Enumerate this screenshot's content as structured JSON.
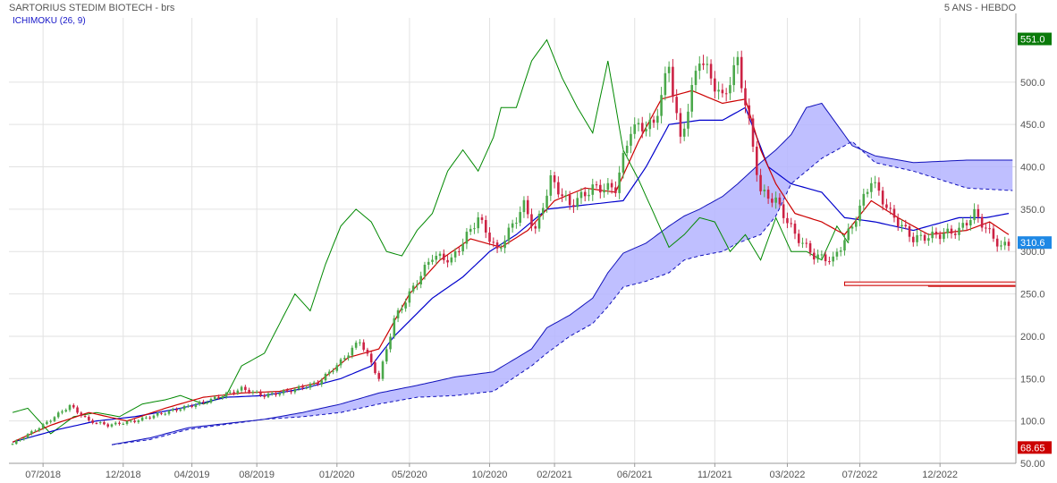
{
  "header": {
    "title": "SARTORIUS STEDIM BIOTECH - brs",
    "period": "5 ANS - HEBDO",
    "indicator": "ICHIMOKU (26, 9)"
  },
  "chart_data": {
    "type": "candlestick",
    "title": "SARTORIUS STEDIM BIOTECH - brs",
    "indicator": "ICHIMOKU (26, 9)",
    "period": "5 ANS - HEBDO",
    "ylim": [
      50,
      560
    ],
    "y_ticks": [
      "50.00",
      "100.0",
      "150.0",
      "200.0",
      "250.0",
      "300.0",
      "350.0",
      "400.0",
      "450.0",
      "500.0"
    ],
    "x_ticks": [
      "07/2018",
      "12/2018",
      "04/2019",
      "08/2019",
      "01/2020",
      "05/2020",
      "10/2020",
      "02/2021",
      "06/2021",
      "11/2021",
      "03/2022",
      "07/2022",
      "12/2022"
    ],
    "x_tick_index": [
      8,
      29,
      47,
      64,
      85,
      104,
      125,
      142,
      163,
      184,
      203,
      222,
      243
    ],
    "series_count": 262,
    "price_keypoints": [
      [
        0,
        73
      ],
      [
        8,
        95
      ],
      [
        15,
        118
      ],
      [
        20,
        100
      ],
      [
        25,
        95
      ],
      [
        32,
        100
      ],
      [
        40,
        110
      ],
      [
        50,
        122
      ],
      [
        60,
        138
      ],
      [
        66,
        130
      ],
      [
        72,
        135
      ],
      [
        80,
        145
      ],
      [
        86,
        170
      ],
      [
        91,
        195
      ],
      [
        96,
        150
      ],
      [
        100,
        220
      ],
      [
        104,
        250
      ],
      [
        110,
        295
      ],
      [
        115,
        290
      ],
      [
        122,
        340
      ],
      [
        127,
        300
      ],
      [
        134,
        355
      ],
      [
        137,
        325
      ],
      [
        141,
        385
      ],
      [
        146,
        355
      ],
      [
        152,
        375
      ],
      [
        158,
        375
      ],
      [
        162,
        445
      ],
      [
        168,
        450
      ],
      [
        172,
        520
      ],
      [
        175,
        430
      ],
      [
        180,
        530
      ],
      [
        186,
        480
      ],
      [
        190,
        525
      ],
      [
        193,
        450
      ],
      [
        196,
        370
      ],
      [
        200,
        360
      ],
      [
        205,
        320
      ],
      [
        210,
        295
      ],
      [
        215,
        290
      ],
      [
        220,
        330
      ],
      [
        225,
        385
      ],
      [
        230,
        345
      ],
      [
        236,
        315
      ],
      [
        243,
        320
      ],
      [
        248,
        325
      ],
      [
        252,
        345
      ],
      [
        256,
        322
      ],
      [
        259,
        305
      ],
      [
        261,
        310
      ]
    ],
    "tenkan_keypoints": [
      [
        0,
        75
      ],
      [
        10,
        95
      ],
      [
        20,
        110
      ],
      [
        30,
        100
      ],
      [
        40,
        115
      ],
      [
        50,
        128
      ],
      [
        60,
        133
      ],
      [
        70,
        135
      ],
      [
        80,
        145
      ],
      [
        88,
        175
      ],
      [
        96,
        185
      ],
      [
        104,
        250
      ],
      [
        112,
        290
      ],
      [
        120,
        315
      ],
      [
        128,
        305
      ],
      [
        135,
        325
      ],
      [
        142,
        360
      ],
      [
        150,
        375
      ],
      [
        158,
        370
      ],
      [
        164,
        430
      ],
      [
        170,
        480
      ],
      [
        178,
        490
      ],
      [
        186,
        475
      ],
      [
        192,
        480
      ],
      [
        196,
        420
      ],
      [
        200,
        380
      ],
      [
        205,
        345
      ],
      [
        212,
        335
      ],
      [
        218,
        320
      ],
      [
        225,
        360
      ],
      [
        232,
        340
      ],
      [
        240,
        320
      ],
      [
        250,
        325
      ],
      [
        256,
        335
      ],
      [
        261,
        320
      ]
    ],
    "kijun_keypoints": [
      [
        0,
        75
      ],
      [
        12,
        90
      ],
      [
        22,
        100
      ],
      [
        32,
        105
      ],
      [
        44,
        115
      ],
      [
        56,
        128
      ],
      [
        66,
        130
      ],
      [
        76,
        138
      ],
      [
        86,
        150
      ],
      [
        94,
        165
      ],
      [
        100,
        200
      ],
      [
        110,
        245
      ],
      [
        118,
        270
      ],
      [
        125,
        300
      ],
      [
        132,
        320
      ],
      [
        140,
        350
      ],
      [
        150,
        355
      ],
      [
        160,
        360
      ],
      [
        166,
        400
      ],
      [
        172,
        450
      ],
      [
        180,
        455
      ],
      [
        186,
        455
      ],
      [
        192,
        470
      ],
      [
        198,
        400
      ],
      [
        204,
        380
      ],
      [
        212,
        370
      ],
      [
        218,
        340
      ],
      [
        226,
        335
      ],
      [
        236,
        325
      ],
      [
        248,
        340
      ],
      [
        255,
        340
      ],
      [
        261,
        345
      ]
    ],
    "chikou_keypoints": [
      [
        0,
        110
      ],
      [
        4,
        115
      ],
      [
        10,
        85
      ],
      [
        16,
        105
      ],
      [
        22,
        110
      ],
      [
        28,
        105
      ],
      [
        34,
        120
      ],
      [
        40,
        125
      ],
      [
        44,
        130
      ],
      [
        50,
        120
      ],
      [
        56,
        130
      ],
      [
        60,
        165
      ],
      [
        66,
        180
      ],
      [
        70,
        215
      ],
      [
        74,
        250
      ],
      [
        78,
        230
      ],
      [
        82,
        285
      ],
      [
        86,
        330
      ],
      [
        90,
        350
      ],
      [
        94,
        335
      ],
      [
        98,
        300
      ],
      [
        102,
        295
      ],
      [
        106,
        325
      ],
      [
        110,
        345
      ],
      [
        114,
        395
      ],
      [
        118,
        420
      ],
      [
        122,
        395
      ],
      [
        126,
        435
      ],
      [
        128,
        470
      ],
      [
        132,
        470
      ],
      [
        136,
        525
      ],
      [
        140,
        550
      ],
      [
        144,
        505
      ],
      [
        148,
        470
      ],
      [
        152,
        440
      ],
      [
        156,
        525
      ],
      [
        160,
        420
      ],
      [
        164,
        385
      ],
      [
        168,
        345
      ],
      [
        172,
        305
      ],
      [
        176,
        320
      ],
      [
        180,
        340
      ],
      [
        184,
        335
      ],
      [
        188,
        300
      ],
      [
        192,
        320
      ],
      [
        196,
        290
      ],
      [
        200,
        340
      ],
      [
        204,
        300
      ],
      [
        208,
        300
      ],
      [
        212,
        290
      ],
      [
        216,
        330
      ],
      [
        219,
        310
      ]
    ],
    "senkou_a_keypoints": [
      [
        26,
        72
      ],
      [
        36,
        80
      ],
      [
        46,
        92
      ],
      [
        56,
        97
      ],
      [
        66,
        102
      ],
      [
        76,
        110
      ],
      [
        86,
        120
      ],
      [
        96,
        133
      ],
      [
        106,
        142
      ],
      [
        116,
        152
      ],
      [
        126,
        158
      ],
      [
        136,
        185
      ],
      [
        140,
        210
      ],
      [
        146,
        225
      ],
      [
        152,
        245
      ],
      [
        156,
        275
      ],
      [
        160,
        298
      ],
      [
        166,
        310
      ],
      [
        172,
        330
      ],
      [
        176,
        342
      ],
      [
        180,
        350
      ],
      [
        186,
        365
      ],
      [
        190,
        380
      ],
      [
        196,
        405
      ],
      [
        200,
        420
      ],
      [
        204,
        438
      ],
      [
        208,
        470
      ],
      [
        212,
        475
      ],
      [
        216,
        450
      ],
      [
        220,
        425
      ],
      [
        226,
        413
      ],
      [
        236,
        405
      ],
      [
        250,
        408
      ],
      [
        262,
        408
      ]
    ],
    "senkou_b_keypoints": [
      [
        26,
        72
      ],
      [
        36,
        78
      ],
      [
        46,
        90
      ],
      [
        56,
        96
      ],
      [
        66,
        102
      ],
      [
        76,
        105
      ],
      [
        86,
        110
      ],
      [
        96,
        120
      ],
      [
        106,
        128
      ],
      [
        116,
        130
      ],
      [
        126,
        135
      ],
      [
        136,
        165
      ],
      [
        140,
        180
      ],
      [
        146,
        200
      ],
      [
        152,
        215
      ],
      [
        156,
        235
      ],
      [
        160,
        258
      ],
      [
        166,
        265
      ],
      [
        172,
        275
      ],
      [
        176,
        290
      ],
      [
        180,
        295
      ],
      [
        186,
        300
      ],
      [
        190,
        310
      ],
      [
        196,
        320
      ],
      [
        200,
        342
      ],
      [
        204,
        380
      ],
      [
        208,
        395
      ],
      [
        212,
        410
      ],
      [
        216,
        420
      ],
      [
        220,
        430
      ],
      [
        226,
        405
      ],
      [
        236,
        395
      ],
      [
        250,
        375
      ],
      [
        262,
        372
      ]
    ],
    "last_price": "310.6",
    "max_label": "551.0",
    "min_label": "68.65",
    "support_zones": [
      [
        261,
        280
      ],
      [
        262,
        270
      ]
    ]
  },
  "colors": {
    "up": "#4aa84a",
    "down": "#cc2244",
    "tenkan": "#cc0000",
    "kijun": "#0000cc",
    "chikou": "#008800",
    "cloud": "#b4b4ff",
    "cloud_edge": "#1010bb",
    "last_tag": "#1e88e5",
    "max_tag": "#0a7a0a",
    "min_tag": "#cc0000"
  }
}
